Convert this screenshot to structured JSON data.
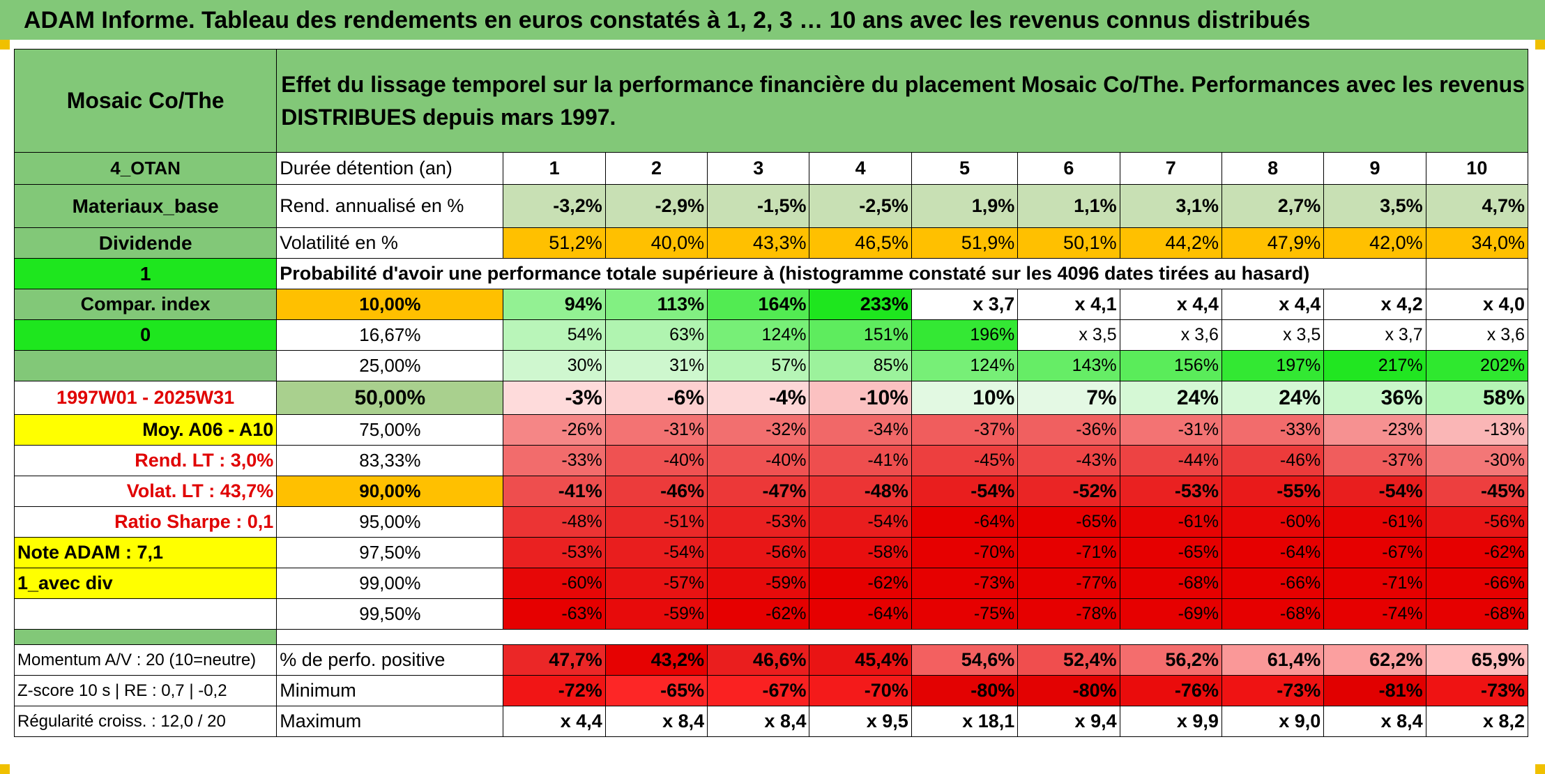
{
  "title": "ADAM Informe. Tableau des rendements en euros constatés à 1, 2, 3 … 10 ans avec les revenus connus distribués",
  "header": {
    "fund": "Mosaic Co/The",
    "description_line1": "Effet du lissage temporel sur la performance financière du placement Mosaic Co/The. Performances avec les revenus",
    "description_line2": "DISTRIBUES depuis mars 1997."
  },
  "left_labels": {
    "code": "4_OTAN",
    "sector": "Materiaux_base",
    "type": "Dividende",
    "flag1": "1",
    "compar": "Compar. index",
    "flag0": "0",
    "period": "1997W01 - 2025W31",
    "moy": "Moy. A06 - A10",
    "rend_lt": "Rend. LT :   3,0%",
    "volat_lt": "Volat. LT :   43,7%",
    "sharpe": "Ratio Sharpe :   0,1",
    "note": "Note ADAM : 7,1",
    "avec_div": "1_avec div"
  },
  "rows": {
    "duree_label": "Durée détention (an)",
    "durations": [
      "1",
      "2",
      "3",
      "4",
      "5",
      "6",
      "7",
      "8",
      "9",
      "10"
    ],
    "rend_label": "Rend. annualisé en %",
    "rend": [
      "-3,2%",
      "-2,9%",
      "-1,5%",
      "-2,5%",
      "1,9%",
      "1,1%",
      "3,1%",
      "2,7%",
      "3,5%",
      "4,7%"
    ],
    "vol_label": "Volatilité en %",
    "vol": [
      "51,2%",
      "40,0%",
      "43,3%",
      "46,5%",
      "51,9%",
      "50,1%",
      "44,2%",
      "47,9%",
      "42,0%",
      "34,0%"
    ],
    "prob_label": "Probabilité d'avoir une performance totale supérieure à (histogramme constaté sur les 4096 dates tirées au hasard)"
  },
  "percentiles": [
    {
      "p": "10,00%",
      "vals": [
        "94%",
        "113%",
        "164%",
        "233%",
        "x 3,7",
        "x 4,1",
        "x 4,4",
        "x 4,4",
        "x 4,2",
        "x 4,0"
      ]
    },
    {
      "p": "16,67%",
      "vals": [
        "54%",
        "63%",
        "124%",
        "151%",
        "196%",
        "x 3,5",
        "x 3,6",
        "x 3,5",
        "x 3,7",
        "x 3,6"
      ]
    },
    {
      "p": "25,00%",
      "vals": [
        "30%",
        "31%",
        "57%",
        "85%",
        "124%",
        "143%",
        "156%",
        "197%",
        "217%",
        "202%"
      ]
    },
    {
      "p": "50,00%",
      "vals": [
        "-3%",
        "-6%",
        "-4%",
        "-10%",
        "10%",
        "7%",
        "24%",
        "24%",
        "36%",
        "58%"
      ]
    },
    {
      "p": "75,00%",
      "vals": [
        "-26%",
        "-31%",
        "-32%",
        "-34%",
        "-37%",
        "-36%",
        "-31%",
        "-33%",
        "-23%",
        "-13%"
      ]
    },
    {
      "p": "83,33%",
      "vals": [
        "-33%",
        "-40%",
        "-40%",
        "-41%",
        "-45%",
        "-43%",
        "-44%",
        "-46%",
        "-37%",
        "-30%"
      ]
    },
    {
      "p": "90,00%",
      "vals": [
        "-41%",
        "-46%",
        "-47%",
        "-48%",
        "-54%",
        "-52%",
        "-53%",
        "-55%",
        "-54%",
        "-45%"
      ]
    },
    {
      "p": "95,00%",
      "vals": [
        "-48%",
        "-51%",
        "-53%",
        "-54%",
        "-64%",
        "-65%",
        "-61%",
        "-60%",
        "-61%",
        "-56%"
      ]
    },
    {
      "p": "97,50%",
      "vals": [
        "-53%",
        "-54%",
        "-56%",
        "-58%",
        "-70%",
        "-71%",
        "-65%",
        "-64%",
        "-67%",
        "-62%"
      ]
    },
    {
      "p": "99,00%",
      "vals": [
        "-60%",
        "-57%",
        "-59%",
        "-62%",
        "-73%",
        "-77%",
        "-68%",
        "-66%",
        "-71%",
        "-66%"
      ]
    },
    {
      "p": "99,50%",
      "vals": [
        "-63%",
        "-59%",
        "-62%",
        "-64%",
        "-75%",
        "-78%",
        "-69%",
        "-68%",
        "-74%",
        "-68%"
      ]
    }
  ],
  "bottom": {
    "momentum": "Momentum A/V : 20 (10=neutre)",
    "zscore": "Z-score 10 s | RE : 0,7 | -0,2",
    "regularite": "Régularité croiss. : 12,0 / 20",
    "pos_label": "% de perfo. positive",
    "pos": [
      "47,7%",
      "43,2%",
      "46,6%",
      "45,4%",
      "54,6%",
      "52,4%",
      "56,2%",
      "61,4%",
      "62,2%",
      "65,9%"
    ],
    "min_label": "Minimum",
    "min": [
      "-72%",
      "-65%",
      "-67%",
      "-70%",
      "-80%",
      "-80%",
      "-76%",
      "-73%",
      "-81%",
      "-73%"
    ],
    "max_label": "Maximum",
    "max": [
      "x 4,4",
      "x 8,4",
      "x 8,4",
      "x 9,5",
      "x 18,1",
      "x 9,4",
      "x 9,9",
      "x 9,0",
      "x 8,4",
      "x 8,2"
    ]
  },
  "colors": {
    "header_green": "#82c878",
    "bright_green": "#1ee61e",
    "yellow": "#ffff00",
    "orange": "#ffc000",
    "red_text": "#e00000"
  }
}
